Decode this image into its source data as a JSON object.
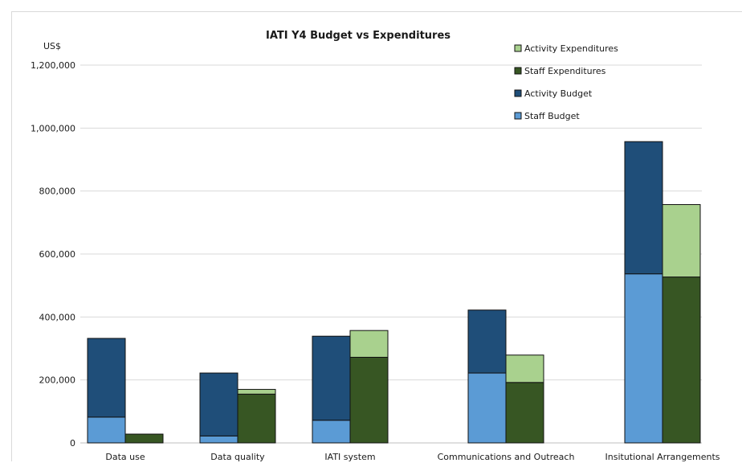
{
  "chart_data": {
    "type": "bar",
    "stacked": true,
    "grouped": true,
    "title": "IATI Y4 Budget vs Expenditures",
    "ylabel": "US$",
    "xlabel": "",
    "ylim": [
      0,
      1200000
    ],
    "yticks": [
      0,
      200000,
      400000,
      600000,
      800000,
      1000000,
      1200000
    ],
    "ytick_labels": [
      "0",
      "200,000",
      "400,000",
      "600,000",
      "800,000",
      "1,000,000",
      "1,200,000"
    ],
    "grid": true,
    "legend_position": "top-right",
    "categories": [
      "Data use",
      "Data quality",
      "IATI system",
      "Communications and Outreach",
      "Insitutional Arrangements"
    ],
    "stacks": [
      {
        "name": "Budget",
        "series": [
          {
            "name": "Staff Budget",
            "color": "#5b9bd5",
            "values": [
              82000,
              22000,
              72000,
              222000,
              537000
            ]
          },
          {
            "name": "Activity Budget",
            "color": "#1f4e79",
            "values": [
              250000,
              200000,
              267000,
              200000,
              420000
            ]
          }
        ]
      },
      {
        "name": "Expenditures",
        "series": [
          {
            "name": "Staff Expenditures",
            "color": "#375623",
            "values": [
              28000,
              155000,
              272000,
              192000,
              527000
            ]
          },
          {
            "name": "Activity Expenditures",
            "color": "#a9d18e",
            "values": [
              0,
              15000,
              85000,
              87000,
              230000
            ]
          }
        ]
      }
    ],
    "legend": [
      {
        "name": "Activity Expenditures",
        "color": "#a9d18e"
      },
      {
        "name": "Staff Expenditures",
        "color": "#375623"
      },
      {
        "name": "Activity Budget",
        "color": "#1f4e79"
      },
      {
        "name": "Staff Budget",
        "color": "#5b9bd5"
      }
    ]
  }
}
